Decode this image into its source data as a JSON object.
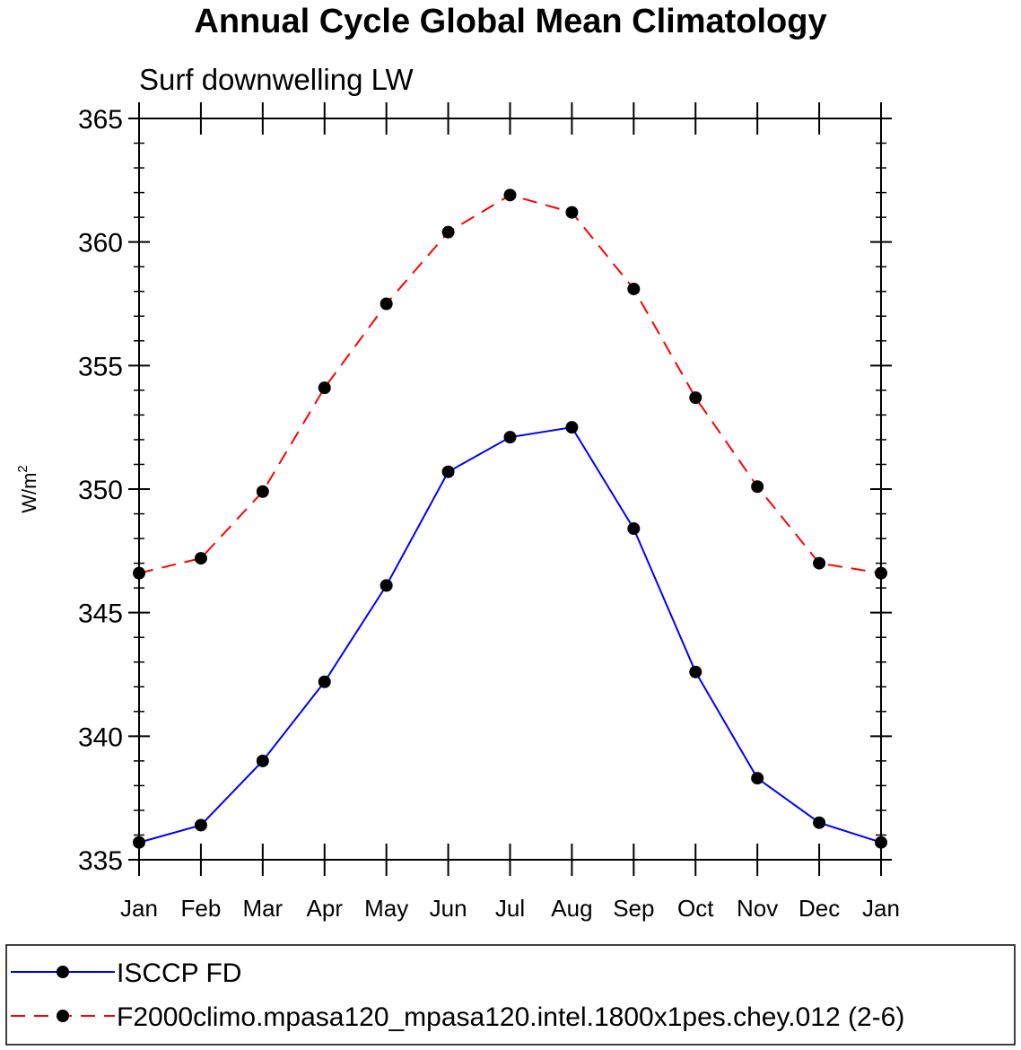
{
  "chart_data": {
    "type": "line",
    "title": "Annual Cycle Global Mean Climatology",
    "subtitle": "Surf downwelling LW",
    "ylabel_base": "W/m",
    "ylabel_sup": "2",
    "xlabel": "",
    "categories": [
      "Jan",
      "Feb",
      "Mar",
      "Apr",
      "May",
      "Jun",
      "Jul",
      "Aug",
      "Sep",
      "Oct",
      "Nov",
      "Dec",
      "Jan"
    ],
    "ylim": [
      335,
      365
    ],
    "yticks": [
      335,
      340,
      345,
      350,
      355,
      360,
      365
    ],
    "grid": false,
    "legend_position": "bottom",
    "series": [
      {
        "name": "ISCCP FD",
        "color": "#0000ff",
        "style": "solid",
        "marker": "dot",
        "values": [
          335.7,
          336.4,
          339.0,
          342.2,
          346.1,
          350.7,
          352.1,
          352.5,
          348.4,
          342.6,
          338.3,
          336.5,
          335.7
        ]
      },
      {
        "name": "F2000climo.mpasa120_mpasa120.intel.1800x1pes.chey.012 (2-6)",
        "color": "#ff0000",
        "style": "dashed",
        "marker": "dot",
        "values": [
          346.6,
          347.2,
          349.9,
          354.1,
          357.5,
          360.4,
          361.9,
          361.2,
          358.1,
          353.7,
          350.1,
          347.0,
          346.6
        ]
      }
    ]
  }
}
